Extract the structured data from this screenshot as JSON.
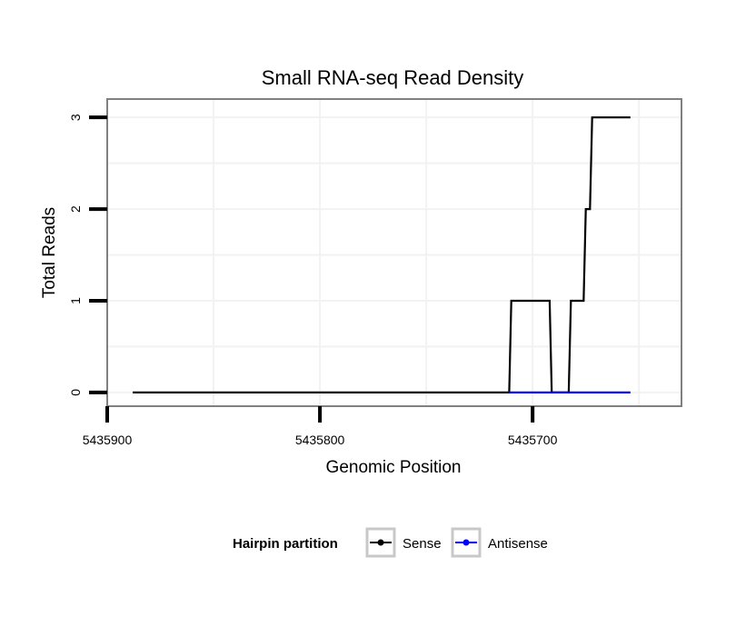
{
  "chart_data": {
    "type": "line",
    "title": "Small RNA-seq Read Density",
    "xlabel": "Genomic Position",
    "ylabel": "Total Reads",
    "x_reversed": true,
    "xlim": [
      5435900,
      5435630
    ],
    "ylim": [
      -0.15,
      3.2
    ],
    "x_ticks": [
      5435900,
      5435800,
      5435700
    ],
    "x_tick_labels": [
      "5435900",
      "5435800",
      "5435700"
    ],
    "y_ticks": [
      0,
      1,
      2,
      3
    ],
    "y_tick_labels": [
      "0",
      "1",
      "2",
      "3"
    ],
    "grid": true,
    "legend": {
      "title": "Hairpin partition",
      "position": "bottom",
      "entries": [
        "Sense",
        "Antisense"
      ]
    },
    "series": [
      {
        "name": "Sense",
        "color": "#000000",
        "x": [
          5435888,
          5435711,
          5435710,
          5435692,
          5435691,
          5435683,
          5435682,
          5435676,
          5435675,
          5435673,
          5435672,
          5435670,
          5435669,
          5435654
        ],
        "y": [
          0,
          0,
          1,
          1,
          0,
          0,
          1,
          1,
          2,
          2,
          3,
          3,
          3,
          3
        ]
      },
      {
        "name": "Antisense",
        "color": "#0000ff",
        "x": [
          5435711,
          5435654
        ],
        "y": [
          0,
          0
        ]
      }
    ]
  }
}
